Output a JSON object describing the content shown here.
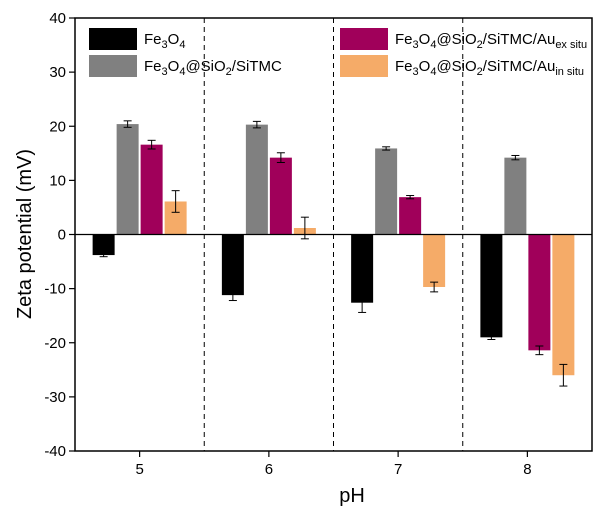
{
  "chart_data": {
    "type": "bar",
    "xlabel": "pH",
    "ylabel": "Zeta potential (mV)",
    "ylim": [
      -40,
      40
    ],
    "yticks": [
      -40,
      -30,
      -20,
      -10,
      0,
      10,
      20,
      30,
      40
    ],
    "categories": [
      "5",
      "6",
      "7",
      "8"
    ],
    "legend_placement": "top",
    "grid": false,
    "group_separators": "dashed",
    "series": [
      {
        "name": "Fe3O4",
        "legend": {
          "parts": [
            {
              "t": "Fe"
            },
            {
              "t": "3",
              "sub": true
            },
            {
              "t": "O"
            },
            {
              "t": "4",
              "sub": true
            }
          ]
        },
        "color": "#000000",
        "values": [
          -3.8,
          -11.2,
          -12.6,
          -19.0
        ],
        "errors": [
          0.3,
          1.0,
          1.8,
          0.4
        ]
      },
      {
        "name": "Fe3O4@SiO2/SiTMC",
        "legend": {
          "parts": [
            {
              "t": "Fe"
            },
            {
              "t": "3",
              "sub": true
            },
            {
              "t": "O"
            },
            {
              "t": "4",
              "sub": true
            },
            {
              "t": "@SiO"
            },
            {
              "t": "2",
              "sub": true
            },
            {
              "t": "/SiTMC"
            }
          ]
        },
        "color": "#808080",
        "values": [
          20.4,
          20.3,
          15.9,
          14.2
        ],
        "errors": [
          0.6,
          0.6,
          0.3,
          0.4
        ]
      },
      {
        "name": "Fe3O4@SiO2/SiTMC/Au ex situ",
        "legend": {
          "parts": [
            {
              "t": "Fe"
            },
            {
              "t": "3",
              "sub": true
            },
            {
              "t": "O"
            },
            {
              "t": "4",
              "sub": true
            },
            {
              "t": "@SiO"
            },
            {
              "t": "2",
              "sub": true
            },
            {
              "t": "/SiTMC/Au"
            },
            {
              "t": "ex situ",
              "sub": true
            }
          ]
        },
        "color": "#a0005a",
        "values": [
          16.6,
          14.2,
          6.9,
          -21.4
        ],
        "errors": [
          0.8,
          0.9,
          0.3,
          0.8
        ]
      },
      {
        "name": "Fe3O4@SiO2/SiTMC/Au in situ",
        "legend": {
          "parts": [
            {
              "t": "Fe"
            },
            {
              "t": "3",
              "sub": true
            },
            {
              "t": "O"
            },
            {
              "t": "4",
              "sub": true
            },
            {
              "t": "@SiO"
            },
            {
              "t": "2",
              "sub": true
            },
            {
              "t": "/SiTMC/Au"
            },
            {
              "t": "in situ",
              "sub": true
            }
          ]
        },
        "color": "#f5ab68",
        "values": [
          6.1,
          1.2,
          -9.7,
          -26.0
        ],
        "errors": [
          2.0,
          2.0,
          0.9,
          2.0
        ]
      }
    ]
  }
}
